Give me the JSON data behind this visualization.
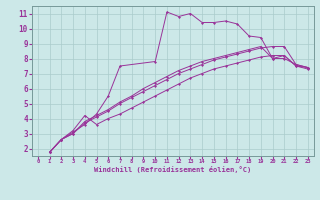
{
  "xlabel": "Windchill (Refroidissement éolien,°C)",
  "ylabel": "",
  "bg_color": "#cce8e8",
  "grid_color": "#aacccc",
  "line_color": "#993399",
  "xlim": [
    -0.5,
    23.5
  ],
  "ylim": [
    1.5,
    11.5
  ],
  "xticks": [
    0,
    1,
    2,
    3,
    4,
    5,
    6,
    7,
    8,
    9,
    10,
    11,
    12,
    13,
    14,
    15,
    16,
    17,
    18,
    19,
    20,
    21,
    22,
    23
  ],
  "yticks": [
    2,
    3,
    4,
    5,
    6,
    7,
    8,
    9,
    10,
    11
  ],
  "lines": [
    {
      "x": [
        1,
        2,
        3,
        4,
        5,
        6,
        7,
        10,
        11,
        12,
        13,
        14,
        15,
        16,
        17,
        18,
        19,
        20,
        21,
        22,
        23
      ],
      "y": [
        1.75,
        2.6,
        3.1,
        3.6,
        4.3,
        5.5,
        7.5,
        7.8,
        11.1,
        10.8,
        11.0,
        10.4,
        10.4,
        10.5,
        10.3,
        9.5,
        9.4,
        8.0,
        8.2,
        7.5,
        7.4
      ]
    },
    {
      "x": [
        1,
        2,
        3,
        4,
        5,
        6,
        7,
        8,
        9,
        10,
        11,
        12,
        13,
        14,
        15,
        16,
        17,
        18,
        19,
        20,
        21,
        22,
        23
      ],
      "y": [
        1.75,
        2.6,
        3.0,
        3.8,
        4.2,
        4.6,
        5.1,
        5.5,
        6.0,
        6.4,
        6.8,
        7.2,
        7.5,
        7.8,
        8.0,
        8.2,
        8.4,
        8.6,
        8.8,
        8.0,
        8.0,
        7.6,
        7.4
      ]
    },
    {
      "x": [
        1,
        2,
        3,
        4,
        5,
        6,
        7,
        8,
        9,
        10,
        11,
        12,
        13,
        14,
        15,
        16,
        17,
        18,
        19,
        20,
        21,
        22,
        23
      ],
      "y": [
        1.75,
        2.6,
        3.0,
        3.7,
        4.1,
        4.5,
        5.0,
        5.4,
        5.8,
        6.2,
        6.6,
        7.0,
        7.3,
        7.6,
        7.9,
        8.1,
        8.3,
        8.5,
        8.7,
        8.8,
        8.8,
        7.6,
        7.4
      ]
    },
    {
      "x": [
        1,
        2,
        3,
        4,
        5,
        6,
        7,
        8,
        9,
        10,
        11,
        12,
        13,
        14,
        15,
        16,
        17,
        18,
        19,
        20,
        21,
        22,
        23
      ],
      "y": [
        1.75,
        2.6,
        3.2,
        4.2,
        3.6,
        4.0,
        4.3,
        4.7,
        5.1,
        5.5,
        5.9,
        6.3,
        6.7,
        7.0,
        7.3,
        7.5,
        7.7,
        7.9,
        8.1,
        8.2,
        8.2,
        7.5,
        7.3
      ]
    }
  ]
}
